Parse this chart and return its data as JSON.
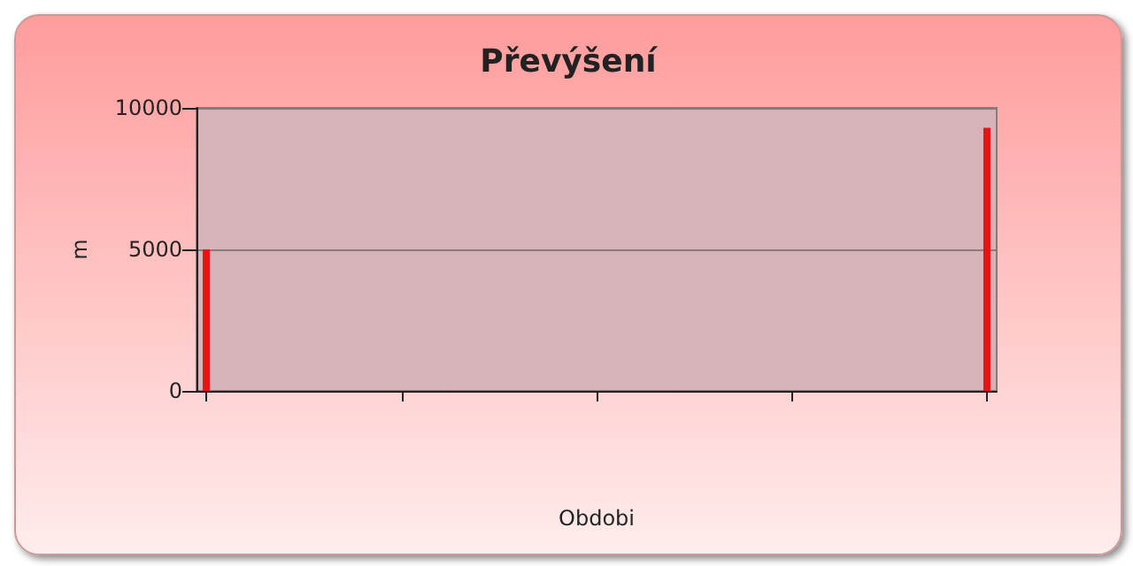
{
  "chart_data": {
    "type": "bar",
    "title": "Převýšení",
    "xlabel": "Obdobi",
    "ylabel": "m",
    "categories": [
      null,
      null,
      null,
      null,
      null,
      null,
      null,
      null,
      null,
      null,
      null,
      null,
      null,
      null,
      null,
      null,
      null,
      null,
      null,
      null,
      null,
      null,
      null,
      null,
      null,
      null,
      null,
      null,
      null,
      null,
      null,
      null,
      null,
      null,
      null,
      null,
      null,
      null,
      null,
      null,
      null
    ],
    "values": [
      5000,
      null,
      null,
      null,
      null,
      null,
      null,
      null,
      null,
      null,
      null,
      null,
      null,
      null,
      null,
      null,
      null,
      null,
      null,
      null,
      null,
      null,
      null,
      null,
      null,
      null,
      null,
      null,
      null,
      null,
      null,
      null,
      null,
      null,
      null,
      null,
      null,
      null,
      null,
      null,
      9300
    ],
    "color": "#ee1111",
    "ylim": [
      0,
      10000
    ],
    "yticks": [
      0,
      5000,
      10000
    ],
    "grid": "y",
    "tick_labels": "y"
  }
}
